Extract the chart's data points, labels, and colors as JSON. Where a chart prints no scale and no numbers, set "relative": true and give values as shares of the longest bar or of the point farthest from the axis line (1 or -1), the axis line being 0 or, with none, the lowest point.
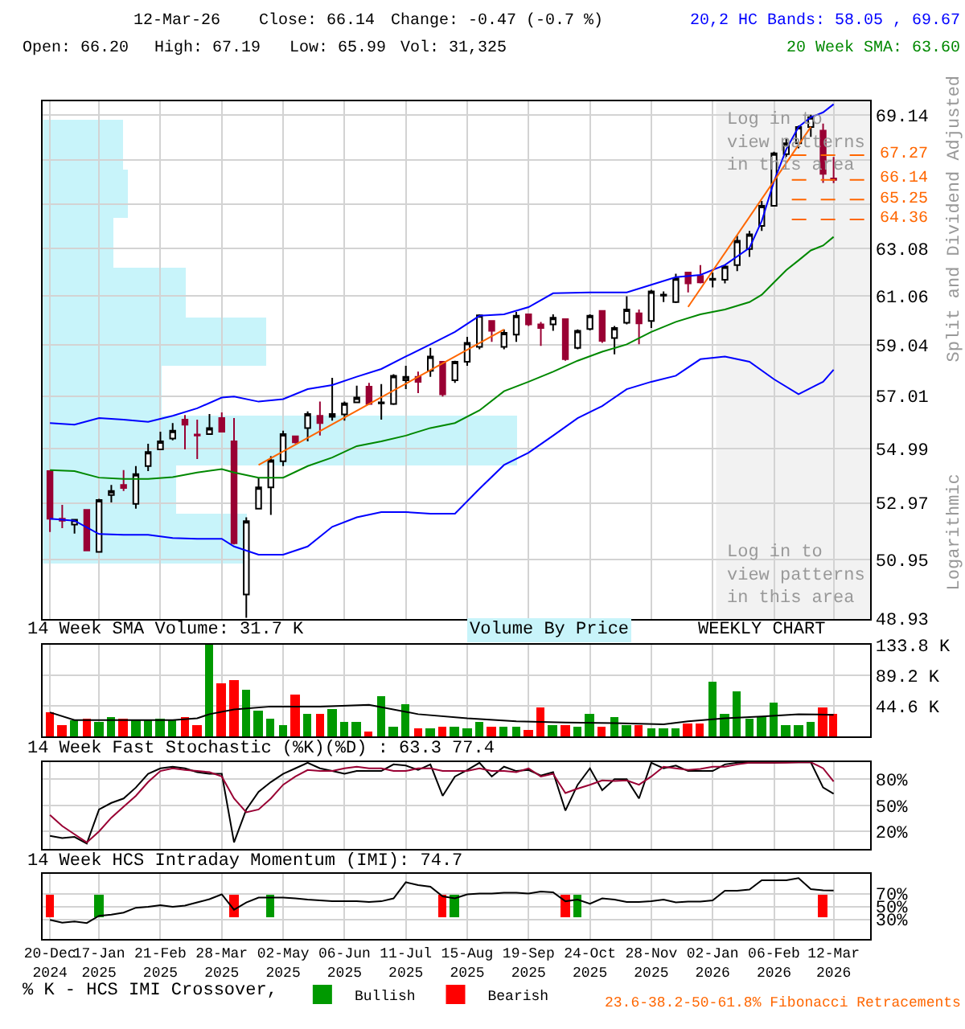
{
  "chart_data": [
    {
      "type": "candlestick",
      "log": true,
      "grid": true,
      "tick_labels": "y",
      "x": [
        "2024-12-20",
        "2024-12-27",
        "2025-01-03",
        "2025-01-10",
        "2025-01-17",
        "2025-01-24",
        "2025-01-31",
        "2025-02-07",
        "2025-02-14",
        "2025-02-21",
        "2025-02-28",
        "2025-03-07",
        "2025-03-14",
        "2025-03-21",
        "2025-03-28",
        "2025-04-04",
        "2025-04-11",
        "2025-04-18",
        "2025-04-25",
        "2025-05-02",
        "2025-05-09",
        "2025-05-16",
        "2025-05-23",
        "2025-05-30",
        "2025-06-06",
        "2025-06-13",
        "2025-06-20",
        "2025-06-27",
        "2025-07-04",
        "2025-07-11",
        "2025-07-18",
        "2025-07-25",
        "2025-08-01",
        "2025-08-08",
        "2025-08-15",
        "2025-08-22",
        "2025-08-29",
        "2025-09-05",
        "2025-09-12",
        "2025-09-19",
        "2025-09-26",
        "2025-10-03",
        "2025-10-10",
        "2025-10-17",
        "2025-10-24",
        "2025-10-31",
        "2025-11-07",
        "2025-11-14",
        "2025-11-21",
        "2025-11-28",
        "2025-12-05",
        "2025-12-12",
        "2025-12-19",
        "2025-12-26",
        "2026-01-02",
        "2026-01-09",
        "2026-01-16",
        "2026-01-23",
        "2026-01-30",
        "2026-02-06",
        "2026-02-13",
        "2026-02-20",
        "2026-02-27",
        "2026-03-06",
        "2026-03-12"
      ],
      "ohlc": [
        [
          54.14,
          54.14,
          51.92,
          52.4
        ],
        [
          52.4,
          52.9,
          52.06,
          52.33
        ],
        [
          52.19,
          52.36,
          51.87,
          52.36
        ],
        [
          52.72,
          52.72,
          51.27,
          51.27
        ],
        [
          51.22,
          53.12,
          51.22,
          53.08
        ],
        [
          53.26,
          53.63,
          52.99,
          53.41
        ],
        [
          53.63,
          54.18,
          53.41,
          53.52
        ],
        [
          52.94,
          54.33,
          52.76,
          54.03
        ],
        [
          54.33,
          55.17,
          54.14,
          54.86
        ],
        [
          54.96,
          55.63,
          54.96,
          55.26
        ],
        [
          55.37,
          55.96,
          55.3,
          55.67
        ],
        [
          56.09,
          56.27,
          54.96,
          55.9
        ],
        [
          55.52,
          56.09,
          54.59,
          55.48
        ],
        [
          55.54,
          56.31,
          55.54,
          55.77
        ],
        [
          56.15,
          56.37,
          55.6,
          55.63
        ],
        [
          55.26,
          56.15,
          51.48,
          51.52
        ],
        [
          49.74,
          52.45,
          48.95,
          52.31
        ],
        [
          52.76,
          53.9,
          52.76,
          53.54
        ],
        [
          53.54,
          54.7,
          52.54,
          54.55
        ],
        [
          54.51,
          55.67,
          54.33,
          55.54
        ],
        [
          55.45,
          55.45,
          55.18,
          55.22
        ],
        [
          55.77,
          56.41,
          55.26,
          56.31
        ],
        [
          56.24,
          56.79,
          55.48,
          55.96
        ],
        [
          56.2,
          57.73,
          56.05,
          56.31
        ],
        [
          56.29,
          56.79,
          56.05,
          56.72
        ],
        [
          56.76,
          57.42,
          56.76,
          56.95
        ],
        [
          57.38,
          57.53,
          56.7,
          56.7
        ],
        [
          56.72,
          57.48,
          56.09,
          56.76
        ],
        [
          56.7,
          57.87,
          56.66,
          57.81
        ],
        [
          57.63,
          58.21,
          57.28,
          57.77
        ],
        [
          57.77,
          57.97,
          57.12,
          57.57
        ],
        [
          58.01,
          58.93,
          57.77,
          58.58
        ],
        [
          58.37,
          58.37,
          56.99,
          57.08
        ],
        [
          57.63,
          58.41,
          57.53,
          58.37
        ],
        [
          58.37,
          59.38,
          58.21,
          59.13
        ],
        [
          58.97,
          60.3,
          58.87,
          60.26
        ],
        [
          60.03,
          60.03,
          59.17,
          59.62
        ],
        [
          58.97,
          59.68,
          58.87,
          59.54
        ],
        [
          59.47,
          60.4,
          59.17,
          60.24
        ],
        [
          60.3,
          60.3,
          59.82,
          59.89
        ],
        [
          59.89,
          59.99,
          59.01,
          59.74
        ],
        [
          59.89,
          60.3,
          59.62,
          60.16
        ],
        [
          60.1,
          60.1,
          58.41,
          58.47
        ],
        [
          58.93,
          59.68,
          58.87,
          59.62
        ],
        [
          59.7,
          60.3,
          59.64,
          60.24
        ],
        [
          60.44,
          60.44,
          59.13,
          59.21
        ],
        [
          59.33,
          59.82,
          58.67,
          59.74
        ],
        [
          59.95,
          61.06,
          59.89,
          60.5
        ],
        [
          60.34,
          60.5,
          59.07,
          59.93
        ],
        [
          60.03,
          61.33,
          59.74,
          61.26
        ],
        [
          61.08,
          61.26,
          60.81,
          61.12
        ],
        [
          60.81,
          62.01,
          60.77,
          61.81
        ],
        [
          62.06,
          62.06,
          61.22,
          61.6
        ],
        [
          61.91,
          62.38,
          61.6,
          61.64
        ],
        [
          61.75,
          62.06,
          61.43,
          61.79
        ],
        [
          61.75,
          62.38,
          61.6,
          62.32
        ],
        [
          62.38,
          63.65,
          62.12,
          63.43
        ],
        [
          63.07,
          63.86,
          62.73,
          63.71
        ],
        [
          64.08,
          65.19,
          63.86,
          64.97
        ],
        [
          64.97,
          67.43,
          64.97,
          67.36
        ],
        [
          67.32,
          68.05,
          67.2,
          67.82
        ],
        [
          67.82,
          68.65,
          67.59,
          68.59
        ],
        [
          68.59,
          69.17,
          68.12,
          69.05
        ],
        [
          68.42,
          68.75,
          66.0,
          66.41
        ],
        [
          66.2,
          67.19,
          65.99,
          66.14
        ]
      ],
      "series": [
        {
          "type": "line",
          "color": "#0000ff",
          "x": [
            "2024-12-20",
            "2025-01-03",
            "2025-01-17",
            "2025-01-31",
            "2025-02-14",
            "2025-02-28",
            "2025-03-14",
            "2025-03-28",
            "2025-04-04",
            "2025-04-18",
            "2025-05-02",
            "2025-05-16",
            "2025-05-30",
            "2025-06-13",
            "2025-06-27",
            "2025-07-11",
            "2025-07-25",
            "2025-08-08",
            "2025-08-22",
            "2025-09-05",
            "2025-09-19",
            "2025-10-03",
            "2025-10-24",
            "2025-11-14",
            "2025-11-28",
            "2025-12-12",
            "2025-12-26",
            "2026-01-09",
            "2026-01-23",
            "2026-01-30",
            "2026-02-06",
            "2026-02-13",
            "2026-02-20",
            "2026-02-27",
            "2026-03-06",
            "2026-03-12"
          ],
          "values": [
            55.96,
            55.9,
            56.15,
            56.09,
            56.01,
            56.24,
            56.53,
            56.95,
            56.99,
            56.79,
            56.89,
            57.28,
            57.44,
            57.77,
            58.08,
            58.58,
            59.07,
            59.58,
            60.24,
            60.3,
            60.6,
            61.18,
            61.22,
            61.22,
            61.54,
            61.86,
            61.96,
            62.38,
            63.12,
            64.3,
            66.07,
            67.55,
            68.59,
            69.05,
            69.28,
            69.67
          ]
        },
        {
          "type": "line",
          "color": "#008800",
          "x": [
            "2024-12-20",
            "2025-01-03",
            "2025-01-17",
            "2025-01-31",
            "2025-02-14",
            "2025-02-28",
            "2025-03-14",
            "2025-03-28",
            "2025-04-04",
            "2025-04-18",
            "2025-05-02",
            "2025-05-16",
            "2025-05-30",
            "2025-06-13",
            "2025-06-27",
            "2025-07-11",
            "2025-07-25",
            "2025-08-08",
            "2025-08-22",
            "2025-09-05",
            "2025-09-19",
            "2025-10-03",
            "2025-10-17",
            "2025-10-31",
            "2025-11-14",
            "2025-11-28",
            "2025-12-12",
            "2025-12-26",
            "2026-01-09",
            "2026-01-23",
            "2026-01-30",
            "2026-02-06",
            "2026-02-13",
            "2026-02-20",
            "2026-02-27",
            "2026-03-06",
            "2026-03-12"
          ],
          "values": [
            54.18,
            54.14,
            53.9,
            53.85,
            53.85,
            53.92,
            54.09,
            54.22,
            54.09,
            53.9,
            53.9,
            54.33,
            54.65,
            55.08,
            55.26,
            55.48,
            55.77,
            55.96,
            56.45,
            57.2,
            57.57,
            57.97,
            58.41,
            58.77,
            59.07,
            59.58,
            59.99,
            60.3,
            60.5,
            60.81,
            61.12,
            61.64,
            62.16,
            62.58,
            63.01,
            63.22,
            63.6
          ]
        },
        {
          "type": "line",
          "color": "#0000ff",
          "x": [
            "2024-12-20",
            "2025-01-03",
            "2025-01-17",
            "2025-01-31",
            "2025-02-14",
            "2025-02-28",
            "2025-03-14",
            "2025-03-28",
            "2025-04-04",
            "2025-04-18",
            "2025-05-02",
            "2025-05-16",
            "2025-05-30",
            "2025-06-13",
            "2025-06-27",
            "2025-07-11",
            "2025-07-25",
            "2025-08-08",
            "2025-08-22",
            "2025-09-05",
            "2025-09-19",
            "2025-10-03",
            "2025-10-17",
            "2025-10-31",
            "2025-11-14",
            "2025-11-28",
            "2025-12-12",
            "2025-12-26",
            "2026-01-09",
            "2026-01-23",
            "2026-02-06",
            "2026-02-20",
            "2026-03-06",
            "2026-03-12"
          ],
          "values": [
            52.4,
            52.33,
            51.85,
            51.82,
            51.82,
            51.71,
            51.68,
            51.68,
            51.41,
            51.12,
            51.12,
            51.41,
            52.11,
            52.45,
            52.64,
            52.64,
            52.58,
            52.58,
            53.49,
            54.37,
            54.83,
            55.48,
            56.15,
            56.62,
            57.28,
            57.57,
            57.81,
            58.47,
            58.58,
            58.37,
            57.67,
            57.08,
            57.57,
            58.05
          ]
        },
        {
          "type": "line",
          "color": "#ff6600",
          "x": [
            "2025-04-18",
            "2025-09-05"
          ],
          "values": [
            54.37,
            59.68
          ]
        },
        {
          "type": "line",
          "color": "#ff6600",
          "x": [
            "2025-12-19",
            "2026-02-27"
          ],
          "values": [
            60.61,
            68.59
          ]
        }
      ],
      "xlim": [
        "2024-12-16",
        "2026-04-02"
      ],
      "xticks": [
        {
          "value": "2024-12-20",
          "label": null
        },
        {
          "value": "2025-01-17",
          "label": null
        },
        {
          "value": "2025-02-21",
          "label": null
        },
        {
          "value": "2025-03-28",
          "label": null
        },
        {
          "value": "2025-05-02",
          "label": null
        },
        {
          "value": "2025-06-06",
          "label": null
        },
        {
          "value": "2025-07-11",
          "label": null
        },
        {
          "value": "2025-08-15",
          "label": null
        },
        {
          "value": "2025-09-19",
          "label": null
        },
        {
          "value": "2025-10-24",
          "label": null
        },
        {
          "value": "2025-11-28",
          "label": null
        },
        {
          "value": "2026-01-02",
          "label": null
        },
        {
          "value": "2026-02-06",
          "label": null
        },
        {
          "value": "2026-03-12",
          "label": null
        }
      ],
      "ylim": [
        48.9,
        69.8
      ],
      "yticks": [
        69.14,
        {
          "value": 67.06,
          "label": null
        },
        {
          "value": 65.03,
          "label": null
        },
        63.08,
        61.06,
        59.04,
        57.01,
        54.99,
        52.97,
        50.95,
        48.93
      ],
      "bands": [
        {
          "axis": "x",
          "from": "2026-01-04",
          "to": "2026-04-02",
          "color": "#f2f2f2"
        }
      ],
      "ref_lines": [
        {
          "axis": "y",
          "value": 67.27,
          "label": "67.27",
          "color": "#ff6600",
          "line_style": "dashed"
        },
        {
          "axis": "y",
          "value": 66.14,
          "label": "66.14",
          "color": "#ff6600",
          "line_style": "dashed"
        },
        {
          "axis": "y",
          "value": 65.25,
          "label": "65.25",
          "color": "#ff6600",
          "line_style": "dashed"
        },
        {
          "axis": "y",
          "value": 64.36,
          "label": "64.36",
          "color": "#ff6600",
          "line_style": "dashed"
        }
      ],
      "annotations": [
        "12-Mar-26",
        "Close: 66.14",
        "Change: -0.47 (-0.7 %)",
        "Open: 66.20",
        "High: 67.19",
        "Low: 65.99",
        "Vol: 31,325",
        "20,2 HC Bands: 58.05 , 69.67",
        "20 Week SMA: 63.60",
        "Split and Dividend Adjusted",
        "Logarithmic",
        "Log in to view patterns in this area",
        "Log in to view patterns in this area",
        "23.6-38.2-50-61.8% Fibonacci Retracements"
      ]
    },
    {
      "type": "bar",
      "orientation": "horizontal",
      "relative": true,
      "title": "Volume By Price",
      "color": "#c8f4fa",
      "categories": [
        null,
        null,
        null,
        null,
        null,
        null,
        null,
        null,
        null
      ],
      "values": [
        0.17,
        0.18,
        0.15,
        0.3,
        0.47,
        0.25,
        1,
        0.28,
        0.43
      ]
    },
    {
      "type": "bar",
      "grid": true,
      "tick_labels": "y",
      "title": "14 Week SMA Volume: 31.7 K",
      "annotations": [
        "WEEKLY CHART"
      ],
      "x": [
        "2024-12-20",
        "2024-12-27",
        "2025-01-03",
        "2025-01-10",
        "2025-01-17",
        "2025-01-24",
        "2025-01-31",
        "2025-02-07",
        "2025-02-14",
        "2025-02-21",
        "2025-02-28",
        "2025-03-07",
        "2025-03-14",
        "2025-03-21",
        "2025-03-28",
        "2025-04-04",
        "2025-04-11",
        "2025-04-18",
        "2025-04-25",
        "2025-05-02",
        "2025-05-09",
        "2025-05-16",
        "2025-05-23",
        "2025-05-30",
        "2025-06-06",
        "2025-06-13",
        "2025-06-20",
        "2025-06-27",
        "2025-07-04",
        "2025-07-11",
        "2025-07-18",
        "2025-07-25",
        "2025-08-01",
        "2025-08-08",
        "2025-08-15",
        "2025-08-22",
        "2025-08-29",
        "2025-09-05",
        "2025-09-12",
        "2025-09-19",
        "2025-09-26",
        "2025-10-03",
        "2025-10-10",
        "2025-10-17",
        "2025-10-24",
        "2025-10-31",
        "2025-11-07",
        "2025-11-14",
        "2025-11-21",
        "2025-11-28",
        "2025-12-05",
        "2025-12-12",
        "2025-12-19",
        "2025-12-26",
        "2026-01-02",
        "2026-01-09",
        "2026-01-16",
        "2026-01-23",
        "2026-01-30",
        "2026-02-06",
        "2026-02-13",
        "2026-02-20",
        "2026-02-27",
        "2026-03-06",
        "2026-03-12"
      ],
      "series": [
        {
          "values": [
            35.2,
            18.0,
            24.0,
            26.6,
            20.6,
            29.2,
            26.6,
            24.9,
            24.9,
            26.6,
            24.0,
            29.2,
            16.3,
            133.8,
            78.1,
            82.3,
            69.5,
            37.7,
            26.6,
            18.0,
            60.9,
            32.6,
            32.6,
            41.2,
            22.3,
            20.6,
            6.9,
            58.3,
            15.4,
            46.3,
            12.0,
            12.0,
            13.7,
            15.4,
            12.0,
            22.3,
            15.4,
            15.4,
            15.4,
            9.4,
            43.7,
            18.0,
            18.0,
            15.4,
            33.5,
            15.4,
            29.2,
            18.0,
            18.0,
            12.0,
            12.0,
            12.0,
            18.9,
            18.9,
            80.6,
            32.6,
            65.2,
            25.7,
            29.2,
            49.7,
            18.0,
            18.0,
            20.6,
            42.9,
            34.3
          ],
          "colors": [
            "#ff0000",
            "#ff0000",
            "#009900",
            "#ff0000",
            "#009900",
            "#009900",
            "#ff0000",
            "#009900",
            "#009900",
            "#009900",
            "#009900",
            "#ff0000",
            "#ff0000",
            "#009900",
            "#ff0000",
            "#ff0000",
            "#009900",
            "#009900",
            "#009900",
            "#009900",
            "#ff0000",
            "#009900",
            "#ff0000",
            "#009900",
            "#009900",
            "#009900",
            "#ff0000",
            "#009900",
            "#009900",
            "#009900",
            "#ff0000",
            "#009900",
            "#ff0000",
            "#009900",
            "#009900",
            "#009900",
            "#ff0000",
            "#009900",
            "#009900",
            "#ff0000",
            "#ff0000",
            "#009900",
            "#ff0000",
            "#009900",
            "#009900",
            "#ff0000",
            "#009900",
            "#009900",
            "#ff0000",
            "#009900",
            "#009900",
            "#009900",
            "#ff0000",
            "#ff0000",
            "#009900",
            "#009900",
            "#009900",
            "#009900",
            "#009900",
            "#009900",
            "#009900",
            "#009900",
            "#009900",
            "#ff0000",
            "#ff0000"
          ]
        },
        {
          "type": "line",
          "color": "#000000",
          "x": [
            "2024-12-20",
            "2025-01-03",
            "2025-01-31",
            "2025-02-28",
            "2025-03-14",
            "2025-03-21",
            "2025-04-04",
            "2025-04-25",
            "2025-05-23",
            "2025-06-20",
            "2025-07-18",
            "2025-08-15",
            "2025-09-12",
            "2025-10-10",
            "2025-11-07",
            "2025-12-05",
            "2025-12-19",
            "2026-01-09",
            "2026-01-30",
            "2026-02-20",
            "2026-03-12"
          ],
          "values": [
            35.2,
            24.0,
            24.0,
            24.0,
            26.6,
            32.6,
            39.5,
            43.7,
            43.7,
            46.3,
            32.6,
            26.6,
            22.3,
            20.6,
            19.7,
            18.0,
            22.3,
            26.6,
            29.2,
            32.6,
            31.7
          ]
        }
      ],
      "xlim": [
        "2024-12-16",
        "2026-04-02"
      ],
      "xticks": [
        {
          "value": "2024-12-20",
          "label": null
        },
        {
          "value": "2025-01-17",
          "label": null
        },
        {
          "value": "2025-02-21",
          "label": null
        },
        {
          "value": "2025-03-28",
          "label": null
        },
        {
          "value": "2025-05-02",
          "label": null
        },
        {
          "value": "2025-06-06",
          "label": null
        },
        {
          "value": "2025-07-11",
          "label": null
        },
        {
          "value": "2025-08-15",
          "label": null
        },
        {
          "value": "2025-09-19",
          "label": null
        },
        {
          "value": "2025-10-24",
          "label": null
        },
        {
          "value": "2025-11-28",
          "label": null
        },
        {
          "value": "2026-01-02",
          "label": null
        },
        {
          "value": "2026-02-06",
          "label": null
        },
        {
          "value": "2026-03-12",
          "label": null
        }
      ],
      "ylim": [
        0,
        133.8
      ],
      "yticks": [
        {
          "value": 44.6,
          "label": "44.6 K"
        },
        {
          "value": 89.2,
          "label": "89.2 K"
        },
        {
          "value": 133.8,
          "label": "133.8 K"
        }
      ]
    },
    {
      "type": "line",
      "grid": true,
      "tick_labels": "y",
      "title": "14 Week Fast Stochastic (%K)(%D) : 63.3 77.4",
      "x": [
        "2024-12-20",
        "2024-12-27",
        "2025-01-03",
        "2025-01-10",
        "2025-01-17",
        "2025-01-24",
        "2025-01-31",
        "2025-02-07",
        "2025-02-14",
        "2025-02-21",
        "2025-02-28",
        "2025-03-07",
        "2025-03-14",
        "2025-03-21",
        "2025-03-28",
        "2025-04-04",
        "2025-04-11",
        "2025-04-18",
        "2025-04-25",
        "2025-05-02",
        "2025-05-09",
        "2025-05-16",
        "2025-05-23",
        "2025-05-30",
        "2025-06-06",
        "2025-06-13",
        "2025-06-20",
        "2025-06-27",
        "2025-07-04",
        "2025-07-11",
        "2025-07-18",
        "2025-07-25",
        "2025-08-01",
        "2025-08-08",
        "2025-08-15",
        "2025-08-22",
        "2025-08-29",
        "2025-09-05",
        "2025-09-12",
        "2025-09-19",
        "2025-09-26",
        "2025-10-03",
        "2025-10-10",
        "2025-10-17",
        "2025-10-24",
        "2025-10-31",
        "2025-11-07",
        "2025-11-14",
        "2025-11-21",
        "2025-11-28",
        "2025-12-05",
        "2025-12-12",
        "2025-12-19",
        "2025-12-26",
        "2026-01-02",
        "2026-01-09",
        "2026-01-16",
        "2026-01-23",
        "2026-01-30",
        "2026-02-06",
        "2026-02-13",
        "2026-02-20",
        "2026-02-27",
        "2026-03-06",
        "2026-03-12"
      ],
      "series": [
        {
          "color": "#000000",
          "values": [
            14.9,
            12.4,
            13.7,
            6.1,
            45.3,
            52.8,
            57.9,
            70.5,
            86.3,
            92.6,
            94.5,
            92.6,
            88.2,
            86.3,
            86.3,
            7.4,
            45.3,
            65.5,
            76.8,
            86.3,
            92.6,
            99.0,
            92.6,
            89.5,
            86.3,
            89.5,
            89.5,
            89.5,
            97.1,
            95.8,
            90.7,
            97.1,
            61.0,
            83.2,
            90.7,
            99.0,
            83.2,
            94.5,
            89.5,
            90.7,
            84.4,
            88.2,
            44.0,
            73.7,
            92.6,
            67.4,
            80.0,
            80.0,
            57.9,
            99.0,
            92.6,
            95.8,
            89.5,
            89.5,
            89.5,
            97.1,
            99.0,
            99.0,
            99.0,
            99.0,
            99.5,
            99.5,
            99.5,
            70.5,
            63.3
          ]
        },
        {
          "color": "#990033",
          "values": [
            38.9,
            26.3,
            16.8,
            7.4,
            20.0,
            35.8,
            48.4,
            61.0,
            76.8,
            89.5,
            92.6,
            90.7,
            89.5,
            88.2,
            83.2,
            57.9,
            42.1,
            45.3,
            57.9,
            73.7,
            83.2,
            90.7,
            89.5,
            89.5,
            92.6,
            94.5,
            92.6,
            92.6,
            89.5,
            89.5,
            92.6,
            92.6,
            89.5,
            89.5,
            89.5,
            92.6,
            89.5,
            89.5,
            88.2,
            92.6,
            83.2,
            86.3,
            64.2,
            69.3,
            73.7,
            78.7,
            78.1,
            78.7,
            73.7,
            83.2,
            94.5,
            92.6,
            90.7,
            91.9,
            94.5,
            94.5,
            97.1,
            99.0,
            99.0,
            99.0,
            99.0,
            99.6,
            99.6,
            92.6,
            77.4
          ]
        }
      ],
      "xlim": [
        "2024-12-16",
        "2026-04-02"
      ],
      "xticks": [
        {
          "value": "2024-12-20",
          "label": null
        },
        {
          "value": "2025-01-17",
          "label": null
        },
        {
          "value": "2025-02-21",
          "label": null
        },
        {
          "value": "2025-03-28",
          "label": null
        },
        {
          "value": "2025-05-02",
          "label": null
        },
        {
          "value": "2025-06-06",
          "label": null
        },
        {
          "value": "2025-07-11",
          "label": null
        },
        {
          "value": "2025-08-15",
          "label": null
        },
        {
          "value": "2025-09-19",
          "label": null
        },
        {
          "value": "2025-10-24",
          "label": null
        },
        {
          "value": "2025-11-28",
          "label": null
        },
        {
          "value": "2026-01-02",
          "label": null
        },
        {
          "value": "2026-02-06",
          "label": null
        },
        {
          "value": "2026-03-12",
          "label": null
        }
      ],
      "ylim": [
        0,
        100
      ],
      "yticks": [
        {
          "value": 20,
          "label": "20%"
        },
        {
          "value": 50,
          "label": "50%"
        },
        {
          "value": 80,
          "label": "80%"
        }
      ]
    },
    {
      "type": "line",
      "grid": true,
      "legend": "bottom",
      "legend_title": "% K - HCS IMI Crossover,",
      "title": "14 Week HCS Intraday Momentum (IMI): 74.7",
      "x": [
        "2024-12-20",
        "2024-12-27",
        "2025-01-03",
        "2025-01-10",
        "2025-01-17",
        "2025-01-24",
        "2025-01-31",
        "2025-02-07",
        "2025-02-14",
        "2025-02-21",
        "2025-02-28",
        "2025-03-07",
        "2025-03-14",
        "2025-03-21",
        "2025-03-28",
        "2025-04-04",
        "2025-04-11",
        "2025-04-18",
        "2025-04-25",
        "2025-05-02",
        "2025-05-09",
        "2025-05-16",
        "2025-05-23",
        "2025-05-30",
        "2025-06-06",
        "2025-06-13",
        "2025-06-20",
        "2025-06-27",
        "2025-07-04",
        "2025-07-11",
        "2025-07-18",
        "2025-07-25",
        "2025-08-01",
        "2025-08-08",
        "2025-08-15",
        "2025-08-22",
        "2025-08-29",
        "2025-09-05",
        "2025-09-12",
        "2025-09-19",
        "2025-09-26",
        "2025-10-03",
        "2025-10-10",
        "2025-10-17",
        "2025-10-24",
        "2025-10-31",
        "2025-11-07",
        "2025-11-14",
        "2025-11-21",
        "2025-11-28",
        "2025-12-05",
        "2025-12-12",
        "2025-12-19",
        "2025-12-26",
        "2026-01-02",
        "2026-01-09",
        "2026-01-16",
        "2026-01-23",
        "2026-01-30",
        "2026-02-06",
        "2026-02-13",
        "2026-02-20",
        "2026-02-27",
        "2026-03-06",
        "2026-03-12"
      ],
      "series": [
        {
          "type": "bar",
          "name": "Bullish",
          "color": "#009900",
          "x": [
            "2025-01-17",
            "2025-04-25",
            "2025-08-08",
            "2025-10-17"
          ],
          "base": [
            33,
            33,
            33,
            33
          ],
          "values": [
            34,
            34,
            34,
            34
          ]
        },
        {
          "type": "bar",
          "name": "Bearish",
          "color": "#ff0000",
          "x": [
            "2024-12-20",
            "2025-04-04",
            "2025-08-01",
            "2025-10-10",
            "2026-03-06"
          ],
          "base": [
            33,
            33,
            33,
            33,
            33
          ],
          "values": [
            34,
            34,
            34,
            34,
            34
          ]
        },
        {
          "color": "#000000",
          "values": [
            29.4,
            25.0,
            26.9,
            24.4,
            35.6,
            37.5,
            40.6,
            48.1,
            49.4,
            51.9,
            49.4,
            51.3,
            56.3,
            61.3,
            68.8,
            45.0,
            56.3,
            63.8,
            63.8,
            63.8,
            62.5,
            60.6,
            59.4,
            58.1,
            58.1,
            58.1,
            56.9,
            58.1,
            62.5,
            87.5,
            83.1,
            80.6,
            65.6,
            62.5,
            68.8,
            70.0,
            70.0,
            71.3,
            71.3,
            70.0,
            73.1,
            71.9,
            58.1,
            60.6,
            54.4,
            62.5,
            60.6,
            56.9,
            56.9,
            58.1,
            60.6,
            56.3,
            57.5,
            57.5,
            59.4,
            74.4,
            74.4,
            76.3,
            90.6,
            90.6,
            90.6,
            93.8,
            76.9,
            75.0,
            74.7
          ]
        }
      ],
      "xlim": [
        "2024-12-16",
        "2026-04-02"
      ],
      "xticks": [
        {
          "value": "2024-12-20",
          "label": "20-Dec\n2024"
        },
        {
          "value": "2025-01-17",
          "label": "17-Jan\n2025"
        },
        {
          "value": "2025-02-21",
          "label": "21-Feb\n2025"
        },
        {
          "value": "2025-03-28",
          "label": "28-Mar\n2025"
        },
        {
          "value": "2025-05-02",
          "label": "02-May\n2025"
        },
        {
          "value": "2025-06-06",
          "label": "06-Jun\n2025"
        },
        {
          "value": "2025-07-11",
          "label": "11-Jul\n2025"
        },
        {
          "value": "2025-08-15",
          "label": "15-Aug\n2025"
        },
        {
          "value": "2025-09-19",
          "label": "19-Sep\n2025"
        },
        {
          "value": "2025-10-24",
          "label": "24-Oct\n2025"
        },
        {
          "value": "2025-11-28",
          "label": "28-Nov\n2025"
        },
        {
          "value": "2026-01-02",
          "label": "02-Jan\n2026"
        },
        {
          "value": "2026-02-06",
          "label": "06-Feb\n2026"
        },
        {
          "value": "2026-03-12",
          "label": "12-Mar\n2026"
        }
      ],
      "ylim": [
        0,
        100
      ],
      "yticks": [
        {
          "value": 30,
          "label": "30%"
        },
        {
          "value": 50,
          "label": "50%"
        },
        {
          "value": 70,
          "label": "70%"
        }
      ]
    }
  ]
}
